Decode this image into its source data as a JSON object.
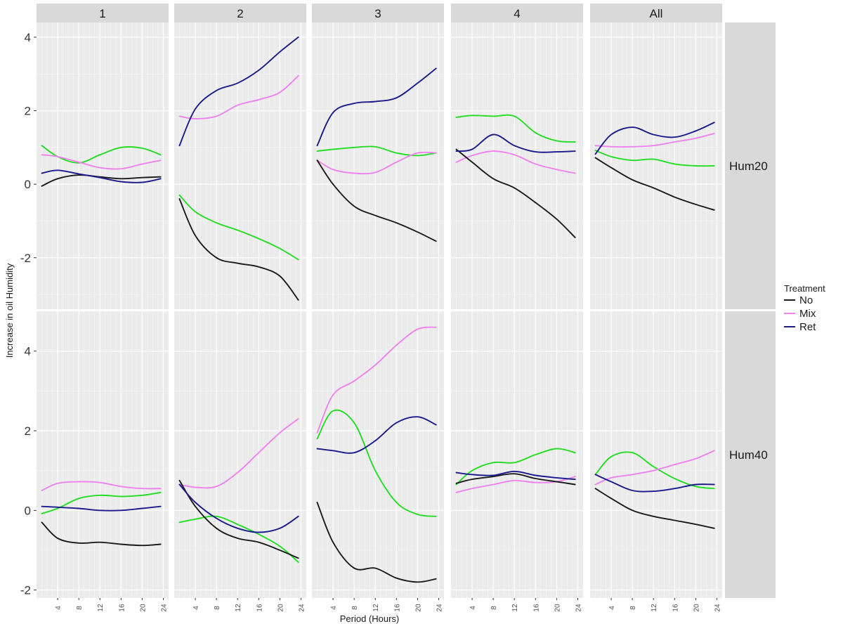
{
  "chart_data": {
    "type": "line",
    "xlabel": "Period (Hours)",
    "ylabel": "Increase in oil Humidity",
    "x_ticks": [
      4,
      8,
      12,
      16,
      20,
      24
    ],
    "columns": [
      "1",
      "2",
      "3",
      "4",
      "All"
    ],
    "rows": [
      {
        "label": "Hum20",
        "ylim": [
          -3.4,
          4.4
        ],
        "y_ticks": [
          -2,
          0,
          2,
          4
        ]
      },
      {
        "label": "Hum40",
        "ylim": [
          -2.2,
          5.0
        ],
        "y_ticks": [
          -2,
          0,
          2,
          4
        ]
      }
    ],
    "legend": {
      "title": "Treatment",
      "entries": [
        {
          "name": "No",
          "color": "#1a1a1a"
        },
        {
          "name": "Mix",
          "color": "#ee82ee"
        },
        {
          "name": "Ret",
          "color": "#1a1a8c"
        }
      ]
    },
    "unlabeled_series_color": "#22dd22",
    "panels": [
      {
        "row": 0,
        "col": 0,
        "series": {
          "No": {
            "x": [
              1,
              4,
              8,
              12,
              16,
              20,
              23.5
            ],
            "y": [
              -0.05,
              0.15,
              0.25,
              0.2,
              0.15,
              0.18,
              0.2
            ]
          },
          "Mix": {
            "x": [
              1,
              4,
              8,
              12,
              16,
              20,
              23.5
            ],
            "y": [
              0.8,
              0.75,
              0.6,
              0.45,
              0.42,
              0.55,
              0.65
            ]
          },
          "Ret": {
            "x": [
              1,
              4,
              8,
              12,
              16,
              20,
              23.5
            ],
            "y": [
              0.3,
              0.38,
              0.28,
              0.18,
              0.07,
              0.05,
              0.15
            ]
          },
          "green": {
            "x": [
              1,
              4,
              8,
              12,
              16,
              20,
              23.5
            ],
            "y": [
              1.05,
              0.75,
              0.58,
              0.8,
              1.0,
              0.98,
              0.8
            ]
          }
        }
      },
      {
        "row": 0,
        "col": 1,
        "series": {
          "No": {
            "x": [
              1,
              4,
              8,
              12,
              16,
              20,
              23.5
            ],
            "y": [
              -0.4,
              -1.4,
              -2.0,
              -2.15,
              -2.25,
              -2.5,
              -3.15
            ]
          },
          "Mix": {
            "x": [
              1,
              4,
              8,
              12,
              16,
              20,
              23.5
            ],
            "y": [
              1.85,
              1.78,
              1.85,
              2.15,
              2.3,
              2.5,
              2.95
            ]
          },
          "Ret": {
            "x": [
              1,
              4,
              8,
              12,
              16,
              20,
              23.5
            ],
            "y": [
              1.05,
              2.05,
              2.55,
              2.75,
              3.1,
              3.6,
              4.0
            ]
          },
          "green": {
            "x": [
              1,
              4,
              8,
              12,
              16,
              20,
              23.5
            ],
            "y": [
              -0.3,
              -0.75,
              -1.05,
              -1.25,
              -1.48,
              -1.75,
              -2.05
            ]
          }
        }
      },
      {
        "row": 0,
        "col": 2,
        "series": {
          "No": {
            "x": [
              1,
              4,
              8,
              12,
              16,
              20,
              23.5
            ],
            "y": [
              0.65,
              0.0,
              -0.6,
              -0.85,
              -1.05,
              -1.3,
              -1.55
            ]
          },
          "Mix": {
            "x": [
              1,
              4,
              8,
              12,
              16,
              20,
              23.5
            ],
            "y": [
              0.65,
              0.4,
              0.3,
              0.32,
              0.6,
              0.85,
              0.85
            ]
          },
          "Ret": {
            "x": [
              1,
              4,
              8,
              12,
              16,
              20,
              23.5
            ],
            "y": [
              1.05,
              1.95,
              2.2,
              2.25,
              2.35,
              2.75,
              3.15
            ]
          },
          "green": {
            "x": [
              1,
              4,
              8,
              12,
              16,
              20,
              23.5
            ],
            "y": [
              0.9,
              0.95,
              1.0,
              1.02,
              0.85,
              0.78,
              0.85
            ]
          }
        }
      },
      {
        "row": 0,
        "col": 3,
        "series": {
          "No": {
            "x": [
              1,
              4,
              8,
              12,
              16,
              20,
              23.5
            ],
            "y": [
              0.95,
              0.6,
              0.15,
              -0.1,
              -0.5,
              -0.95,
              -1.45
            ]
          },
          "Mix": {
            "x": [
              1,
              4,
              8,
              12,
              16,
              20,
              23.5
            ],
            "y": [
              0.6,
              0.78,
              0.9,
              0.8,
              0.55,
              0.4,
              0.3
            ]
          },
          "Ret": {
            "x": [
              1,
              4,
              8,
              12,
              16,
              20,
              23.5
            ],
            "y": [
              0.9,
              0.95,
              1.35,
              1.05,
              0.88,
              0.88,
              0.9
            ]
          },
          "green": {
            "x": [
              1,
              4,
              8,
              12,
              16,
              20,
              23.5
            ],
            "y": [
              1.82,
              1.87,
              1.85,
              1.85,
              1.4,
              1.18,
              1.15
            ]
          }
        }
      },
      {
        "row": 0,
        "col": 4,
        "series": {
          "No": {
            "x": [
              1,
              4,
              8,
              12,
              16,
              20,
              23.5
            ],
            "y": [
              0.72,
              0.45,
              0.12,
              -0.1,
              -0.35,
              -0.55,
              -0.7
            ]
          },
          "Mix": {
            "x": [
              1,
              4,
              8,
              12,
              16,
              20,
              23.5
            ],
            "y": [
              1.05,
              1.02,
              1.02,
              1.05,
              1.15,
              1.25,
              1.38
            ]
          },
          "Ret": {
            "x": [
              1,
              4,
              8,
              12,
              16,
              20,
              23.5
            ],
            "y": [
              0.82,
              1.35,
              1.55,
              1.35,
              1.28,
              1.45,
              1.68
            ]
          },
          "green": {
            "x": [
              1,
              4,
              8,
              12,
              16,
              20,
              23.5
            ],
            "y": [
              0.92,
              0.75,
              0.65,
              0.68,
              0.55,
              0.5,
              0.5
            ]
          }
        }
      },
      {
        "row": 1,
        "col": 0,
        "series": {
          "No": {
            "x": [
              1,
              4,
              8,
              12,
              16,
              20,
              23.5
            ],
            "y": [
              -0.3,
              -0.7,
              -0.82,
              -0.8,
              -0.85,
              -0.88,
              -0.85
            ]
          },
          "Mix": {
            "x": [
              1,
              4,
              8,
              12,
              16,
              20,
              23.5
            ],
            "y": [
              0.5,
              0.68,
              0.72,
              0.7,
              0.6,
              0.55,
              0.55
            ]
          },
          "Ret": {
            "x": [
              1,
              4,
              8,
              12,
              16,
              20,
              23.5
            ],
            "y": [
              0.1,
              0.08,
              0.05,
              0.0,
              0.0,
              0.05,
              0.1
            ]
          },
          "green": {
            "x": [
              1,
              4,
              8,
              12,
              16,
              20,
              23.5
            ],
            "y": [
              -0.08,
              0.05,
              0.3,
              0.38,
              0.35,
              0.38,
              0.45
            ]
          }
        }
      },
      {
        "row": 1,
        "col": 1,
        "series": {
          "No": {
            "x": [
              1,
              4,
              8,
              12,
              16,
              20,
              23.5
            ],
            "y": [
              0.75,
              0.1,
              -0.45,
              -0.7,
              -0.8,
              -1.0,
              -1.2
            ]
          },
          "Mix": {
            "x": [
              1,
              4,
              8,
              12,
              16,
              20,
              23.5
            ],
            "y": [
              0.65,
              0.58,
              0.6,
              0.95,
              1.45,
              1.95,
              2.3
            ]
          },
          "Ret": {
            "x": [
              1,
              4,
              8,
              12,
              16,
              20,
              23.5
            ],
            "y": [
              0.65,
              0.2,
              -0.2,
              -0.45,
              -0.55,
              -0.45,
              -0.15
            ]
          },
          "green": {
            "x": [
              1,
              4,
              8,
              12,
              16,
              20,
              23.5
            ],
            "y": [
              -0.3,
              -0.22,
              -0.15,
              -0.35,
              -0.6,
              -0.9,
              -1.3
            ]
          }
        }
      },
      {
        "row": 1,
        "col": 2,
        "series": {
          "No": {
            "x": [
              1,
              4,
              8,
              12,
              16,
              20,
              23.5
            ],
            "y": [
              0.2,
              -0.8,
              -1.45,
              -1.45,
              -1.7,
              -1.8,
              -1.72
            ]
          },
          "Mix": {
            "x": [
              1,
              4,
              8,
              12,
              16,
              20,
              23.5
            ],
            "y": [
              1.95,
              2.9,
              3.25,
              3.65,
              4.15,
              4.55,
              4.6
            ]
          },
          "Ret": {
            "x": [
              1,
              4,
              8,
              12,
              16,
              20,
              23.5
            ],
            "y": [
              1.55,
              1.5,
              1.45,
              1.75,
              2.2,
              2.35,
              2.15
            ]
          },
          "green": {
            "x": [
              1,
              4,
              8,
              12,
              16,
              20,
              23.5
            ],
            "y": [
              1.8,
              2.5,
              2.2,
              1.0,
              0.2,
              -0.1,
              -0.15
            ]
          }
        }
      },
      {
        "row": 1,
        "col": 3,
        "series": {
          "No": {
            "x": [
              1,
              4,
              8,
              12,
              16,
              20,
              23.5
            ],
            "y": [
              0.68,
              0.78,
              0.85,
              0.92,
              0.8,
              0.72,
              0.65
            ]
          },
          "Mix": {
            "x": [
              1,
              4,
              8,
              12,
              16,
              20,
              23.5
            ],
            "y": [
              0.45,
              0.55,
              0.65,
              0.75,
              0.7,
              0.72,
              0.85
            ]
          },
          "Ret": {
            "x": [
              1,
              4,
              8,
              12,
              16,
              20,
              23.5
            ],
            "y": [
              0.95,
              0.9,
              0.88,
              0.98,
              0.88,
              0.82,
              0.78
            ]
          },
          "green": {
            "x": [
              1,
              4,
              8,
              12,
              16,
              20,
              23.5
            ],
            "y": [
              0.65,
              1.0,
              1.2,
              1.2,
              1.4,
              1.55,
              1.45
            ]
          }
        }
      },
      {
        "row": 1,
        "col": 4,
        "series": {
          "No": {
            "x": [
              1,
              4,
              8,
              12,
              16,
              20,
              23.5
            ],
            "y": [
              0.55,
              0.3,
              0.0,
              -0.15,
              -0.25,
              -0.35,
              -0.45
            ]
          },
          "Mix": {
            "x": [
              1,
              4,
              8,
              12,
              16,
              20,
              23.5
            ],
            "y": [
              0.65,
              0.82,
              0.9,
              1.0,
              1.15,
              1.3,
              1.5
            ]
          },
          "Ret": {
            "x": [
              1,
              4,
              8,
              12,
              16,
              20,
              23.5
            ],
            "y": [
              0.9,
              0.72,
              0.5,
              0.48,
              0.55,
              0.65,
              0.65
            ]
          },
          "green": {
            "x": [
              1,
              4,
              8,
              12,
              16,
              20,
              23.5
            ],
            "y": [
              0.9,
              1.35,
              1.45,
              1.1,
              0.8,
              0.6,
              0.55
            ]
          }
        }
      }
    ]
  }
}
